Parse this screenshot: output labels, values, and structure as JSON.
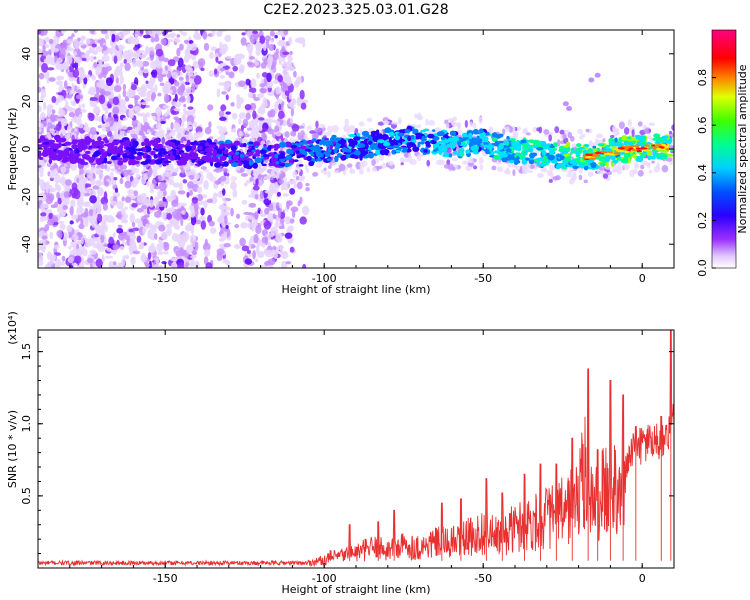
{
  "title": "C2E2.2023.325.03.01.G28",
  "chart_data": [
    {
      "type": "heatmap",
      "xlabel": "Height of straight line (km)",
      "ylabel": "Frequency (Hz)",
      "xlim": [
        -190,
        10
      ],
      "ylim": [
        -50,
        50
      ],
      "xticks": [
        -150,
        -100,
        -50,
        0
      ],
      "yticks": [
        -40,
        -20,
        0,
        20,
        40
      ],
      "colorbar": {
        "label": "Normalized spectral amplitude",
        "range": [
          0,
          1
        ],
        "ticks": [
          0.0,
          0.2,
          0.4,
          0.6,
          0.8
        ],
        "colors": [
          "#ffffff",
          "#c080ff",
          "#6a00ff",
          "#0000ff",
          "#00c8ff",
          "#00ff80",
          "#80ff00",
          "#ffff00",
          "#ff8000",
          "#ff0000",
          "#ff0080"
        ]
      },
      "ridge_path": [
        {
          "x": -190,
          "f": 0
        },
        {
          "x": -130,
          "f": -2
        },
        {
          "x": -110,
          "f": -3
        },
        {
          "x": -100,
          "f": 0
        },
        {
          "x": -90,
          "f": 1
        },
        {
          "x": -75,
          "f": 4
        },
        {
          "x": -60,
          "f": 2
        },
        {
          "x": -50,
          "f": 3
        },
        {
          "x": -40,
          "f": -1
        },
        {
          "x": -25,
          "f": -3
        },
        {
          "x": -15,
          "f": -3
        },
        {
          "x": -5,
          "f": 0
        },
        {
          "x": 10,
          "f": 1
        }
      ]
    },
    {
      "type": "line",
      "xlabel": "Height of straight line (km)",
      "ylabel": "SNR (10 * v/v)",
      "multiplier": "(x10⁴)",
      "xlim": [
        -190,
        10
      ],
      "ylim": [
        0,
        1.65
      ],
      "xticks": [
        -150,
        -100,
        -50,
        0
      ],
      "yticks": [
        0.5,
        1.0,
        1.5
      ],
      "series": [
        {
          "color": "#e83030",
          "x": [
            -190,
            -180,
            -170,
            -160,
            -150,
            -140,
            -130,
            -120,
            -110,
            -105,
            -100,
            -95,
            -90,
            -85,
            -80,
            -75,
            -70,
            -65,
            -60,
            -55,
            -50,
            -45,
            -40,
            -35,
            -30,
            -25,
            -20,
            -18,
            -15,
            -12,
            -10,
            -8,
            -5,
            -3,
            0,
            3,
            5,
            8,
            10
          ],
          "y": [
            0.02,
            0.02,
            0.02,
            0.03,
            0.02,
            0.03,
            0.04,
            0.03,
            0.04,
            0.05,
            0.08,
            0.12,
            0.15,
            0.2,
            0.18,
            0.22,
            0.2,
            0.25,
            0.25,
            0.3,
            0.35,
            0.3,
            0.4,
            0.45,
            0.5,
            0.55,
            0.7,
            0.95,
            0.6,
            0.75,
            0.7,
            0.9,
            0.75,
            0.85,
            0.9,
            0.95,
            0.9,
            1.0,
            1.15
          ],
          "peaks": [
            {
              "x": -98,
              "y": 0.12
            },
            {
              "x": -92,
              "y": 0.3
            },
            {
              "x": -83,
              "y": 0.32
            },
            {
              "x": -78,
              "y": 0.4
            },
            {
              "x": -63,
              "y": 0.45
            },
            {
              "x": -57,
              "y": 0.48
            },
            {
              "x": -49,
              "y": 0.62
            },
            {
              "x": -44,
              "y": 0.52
            },
            {
              "x": -37,
              "y": 0.65
            },
            {
              "x": -32,
              "y": 0.72
            },
            {
              "x": -27,
              "y": 0.72
            },
            {
              "x": -22,
              "y": 0.9
            },
            {
              "x": -17,
              "y": 1.38
            },
            {
              "x": -14,
              "y": 0.82
            },
            {
              "x": -10,
              "y": 1.3
            },
            {
              "x": -6,
              "y": 1.2
            },
            {
              "x": -2,
              "y": 0.98
            },
            {
              "x": 6,
              "y": 1.05
            },
            {
              "x": 9,
              "y": 1.65
            }
          ]
        }
      ]
    }
  ]
}
